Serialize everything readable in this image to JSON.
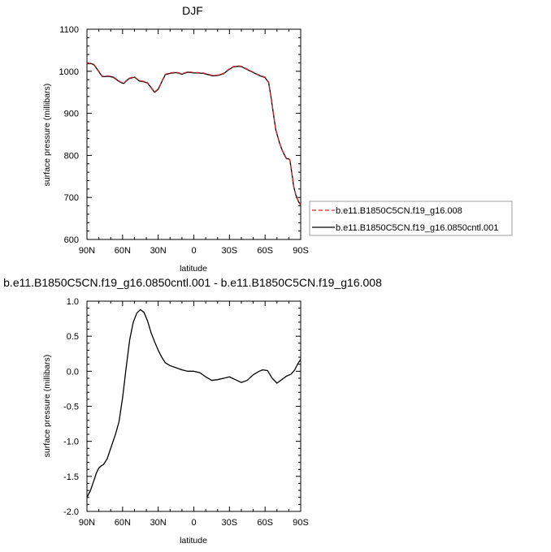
{
  "chart_data": [
    {
      "type": "line",
      "title": "DJF",
      "xlabel": "latitude",
      "ylabel": "surface pressure (millibars)",
      "xlim": [
        90,
        -90
      ],
      "ylim": [
        600,
        1100
      ],
      "xticks": [
        90,
        60,
        30,
        0,
        -30,
        -60,
        -90
      ],
      "xtick_labels": [
        "90N",
        "60N",
        "30N",
        "0",
        "30S",
        "60S",
        "90S"
      ],
      "yticks": [
        600,
        700,
        800,
        900,
        1000,
        1100
      ],
      "ytick_labels": [
        "600",
        "700",
        "800",
        "900",
        "1000",
        "1100"
      ],
      "legend_position": "right",
      "series": [
        {
          "name": "b.e11.B1850C5CN.f19_g16.008",
          "color": "#d62728",
          "dash": "dashed",
          "x": [
            90,
            86,
            84,
            80,
            77,
            72,
            68,
            64,
            62,
            59,
            55,
            50,
            46,
            42,
            39,
            37,
            35,
            33,
            30,
            27,
            24,
            20,
            15,
            10,
            5,
            0,
            -3,
            -8,
            -12,
            -16,
            -20,
            -25,
            -29,
            -33,
            -37,
            -40,
            -45,
            -50,
            -55,
            -58,
            -60,
            -63,
            -65,
            -67,
            -69,
            -71,
            -72,
            -74,
            -76,
            -78,
            -80,
            -81,
            -83,
            -84,
            -86,
            -88,
            -90
          ],
          "values": [
            1019,
            1019,
            1016,
            1000,
            988,
            989,
            987,
            979,
            975,
            972,
            983,
            987,
            978,
            976,
            973,
            966,
            958,
            951,
            958,
            976,
            993,
            996,
            998,
            994,
            999,
            997,
            997,
            996,
            993,
            990,
            991,
            995,
            1004,
            1011,
            1013,
            1012,
            1005,
            998,
            991,
            988,
            986,
            974,
            940,
            900,
            862,
            842,
            832,
            816,
            804,
            793,
            793,
            788,
            750,
            728,
            706,
            692,
            682
          ]
        },
        {
          "name": "b.e11.B1850C5CN.f19_g16.0850cntl.001",
          "color": "#000000",
          "dash": "solid",
          "x": [
            90,
            86,
            84,
            80,
            77,
            72,
            68,
            64,
            62,
            59,
            55,
            50,
            46,
            42,
            39,
            37,
            35,
            33,
            30,
            27,
            24,
            20,
            15,
            10,
            5,
            0,
            -3,
            -8,
            -12,
            -16,
            -20,
            -25,
            -29,
            -33,
            -37,
            -40,
            -45,
            -50,
            -55,
            -58,
            -60,
            -63,
            -65,
            -67,
            -69,
            -71,
            -72,
            -74,
            -76,
            -78,
            -80,
            -81,
            -83,
            -84,
            -86,
            -88,
            -90
          ],
          "values": [
            1018,
            1018,
            1015,
            999,
            987,
            988,
            986,
            978,
            974,
            971,
            982,
            986,
            977,
            975,
            972,
            965,
            957,
            950,
            957,
            975,
            992,
            995,
            997,
            993,
            998,
            996,
            996,
            995,
            992,
            989,
            990,
            994,
            1003,
            1010,
            1012,
            1011,
            1004,
            997,
            990,
            987,
            985,
            973,
            939,
            899,
            861,
            841,
            831,
            815,
            803,
            792,
            792,
            787,
            749,
            727,
            705,
            691,
            681
          ]
        }
      ]
    },
    {
      "type": "line",
      "title": "b.e11.B1850C5CN.f19_g16.0850cntl.001 - b.e11.B1850C5CN.f19_g16.008",
      "xlabel": "latitude",
      "ylabel": "surface pressure (millibars)",
      "xlim": [
        90,
        -90
      ],
      "ylim": [
        -2.0,
        1.0
      ],
      "xticks": [
        90,
        60,
        30,
        0,
        -30,
        -60,
        -90
      ],
      "xtick_labels": [
        "90N",
        "60N",
        "30N",
        "0",
        "30S",
        "60S",
        "90S"
      ],
      "yticks": [
        -2.0,
        -1.5,
        -1.0,
        -0.5,
        0.0,
        0.5,
        1.0
      ],
      "ytick_labels": [
        "-2.0",
        "-1.5",
        "-1.0",
        "-0.5",
        "0.0",
        "0.5",
        "1.0"
      ],
      "series": [
        {
          "color": "#000000",
          "x": [
            90,
            87,
            84,
            82,
            80,
            78,
            76,
            73,
            70,
            66,
            63,
            60,
            57,
            54,
            51,
            48,
            45,
            42,
            39,
            36,
            33,
            30,
            27,
            24,
            20,
            15,
            10,
            5,
            0,
            -5,
            -10,
            -15,
            -20,
            -25,
            -30,
            -35,
            -40,
            -45,
            -50,
            -55,
            -58,
            -62,
            -66,
            -70,
            -74,
            -78,
            -82,
            -85,
            -88,
            -90
          ],
          "values": [
            -1.8,
            -1.7,
            -1.55,
            -1.45,
            -1.38,
            -1.35,
            -1.33,
            -1.25,
            -1.1,
            -0.9,
            -0.72,
            -0.38,
            0.05,
            0.45,
            0.7,
            0.83,
            0.88,
            0.84,
            0.72,
            0.55,
            0.42,
            0.3,
            0.2,
            0.12,
            0.08,
            0.05,
            0.02,
            0.0,
            0.0,
            -0.02,
            -0.08,
            -0.13,
            -0.12,
            -0.1,
            -0.08,
            -0.12,
            -0.16,
            -0.13,
            -0.05,
            0.0,
            0.02,
            0.01,
            -0.1,
            -0.17,
            -0.12,
            -0.07,
            -0.04,
            0.02,
            0.12,
            0.17
          ]
        }
      ]
    }
  ]
}
